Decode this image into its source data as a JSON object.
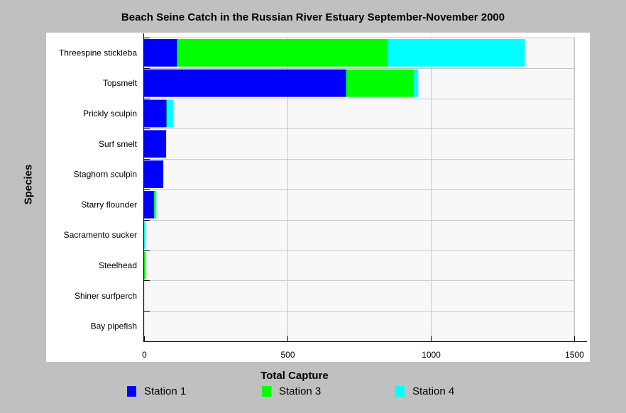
{
  "chart_data": {
    "type": "bar",
    "orientation": "horizontal",
    "stacked": true,
    "title": "Beach Seine Catch in the Russian River Estuary September-November 2000",
    "xlabel": "Total Capture",
    "ylabel": "Species",
    "categories": [
      "Threespine stickleba",
      "Topsmelt",
      "Prickly sculpin",
      "Surf smelt",
      "Staghorn sculpin",
      "Starry flounder",
      "Sacramento sucker",
      "Steelhead",
      "Shiner surfperch",
      "Bay pipefish"
    ],
    "series": [
      {
        "name": "Station 1",
        "color": "#0000ff",
        "values": [
          115,
          705,
          78,
          77,
          67,
          35,
          0,
          0,
          0,
          0
        ]
      },
      {
        "name": "Station 3",
        "color": "#00ff00",
        "values": [
          735,
          236,
          2,
          0,
          0,
          5,
          0,
          5,
          0,
          0
        ]
      },
      {
        "name": "Station 4",
        "color": "#00ffff",
        "values": [
          478,
          15,
          22,
          0,
          0,
          3,
          5,
          0,
          0,
          0
        ]
      }
    ],
    "xlim": [
      0,
      1500
    ],
    "xticks": [
      0,
      500,
      1000,
      1500
    ],
    "grid": true,
    "legend_position": "bottom"
  }
}
